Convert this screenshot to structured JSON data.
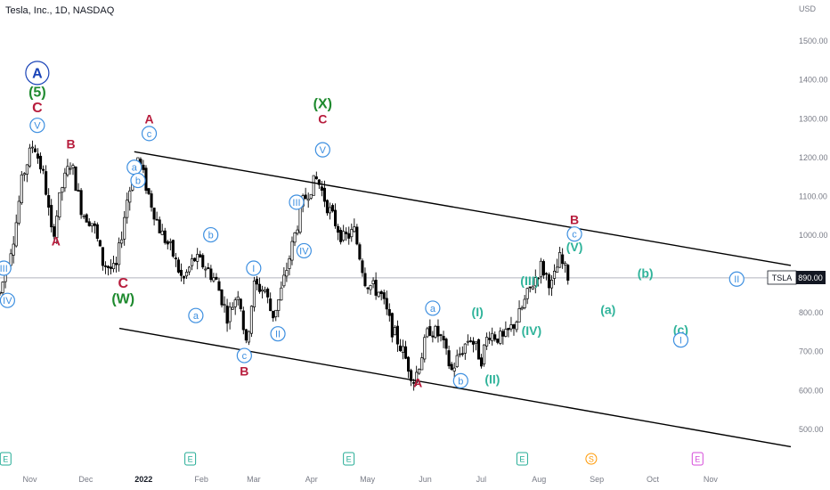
{
  "header": {
    "title": "Tesla, Inc., 1D, NASDAQ",
    "currency": "USD"
  },
  "price_tag": {
    "symbol": "TSLA",
    "price": "890.00"
  },
  "colors": {
    "up": "#ffffff",
    "down": "#000000",
    "channel": "#000000",
    "red": "#b71c3c",
    "green": "#1e8a2e",
    "blue": "#3d8fe0",
    "navy": "#1943b7",
    "teal": "#2fb39a",
    "axis_text": "#787b86",
    "price_line": "#b2b5be",
    "earnings": "#22ab94",
    "dividend": "#ff9800",
    "event": "#d449d9"
  },
  "chart_data": {
    "type": "candlestick",
    "ylim": [
      440,
      1560
    ],
    "y_ticks": [
      500,
      600,
      700,
      800,
      900,
      1000,
      1100,
      1200,
      1300,
      1400,
      1500
    ],
    "y_tick_labels": [
      "500.00",
      "600.00",
      "700.00",
      "800.00",
      "900.00",
      "1000.00",
      "1100.00",
      "1200.00",
      "1300.00",
      "1400.00",
      "1500.00"
    ],
    "x_ticks": [
      {
        "day": 16,
        "label": "Nov"
      },
      {
        "day": 46,
        "label": "Dec"
      },
      {
        "day": 77,
        "label": "2022"
      },
      {
        "day": 108,
        "label": "Feb"
      },
      {
        "day": 136,
        "label": "Mar"
      },
      {
        "day": 167,
        "label": "Apr"
      },
      {
        "day": 197,
        "label": "May"
      },
      {
        "day": 228,
        "label": "Jun"
      },
      {
        "day": 258,
        "label": "Jul"
      },
      {
        "day": 289,
        "label": "Aug"
      },
      {
        "day": 320,
        "label": "Sep"
      },
      {
        "day": 350,
        "label": "Oct"
      },
      {
        "day": 381,
        "label": "Nov"
      }
    ],
    "x_range": [
      0,
      424
    ],
    "last_price": 890,
    "price_path": [
      [
        0,
        850
      ],
      [
        8,
        1010
      ],
      [
        12,
        1150
      ],
      [
        18,
        1240
      ],
      [
        24,
        1140
      ],
      [
        28,
        990
      ],
      [
        33,
        1120
      ],
      [
        38,
        1190
      ],
      [
        44,
        1060
      ],
      [
        50,
        1030
      ],
      [
        55,
        930
      ],
      [
        62,
        905
      ],
      [
        68,
        1090
      ],
      [
        74,
        1200
      ],
      [
        80,
        1100
      ],
      [
        86,
        1010
      ],
      [
        92,
        960
      ],
      [
        98,
        880
      ],
      [
        104,
        940
      ],
      [
        110,
        920
      ],
      [
        116,
        880
      ],
      [
        122,
        790
      ],
      [
        128,
        860
      ],
      [
        132,
        710
      ],
      [
        136,
        870
      ],
      [
        142,
        860
      ],
      [
        146,
        790
      ],
      [
        150,
        840
      ],
      [
        156,
        960
      ],
      [
        162,
        1080
      ],
      [
        166,
        1120
      ],
      [
        170,
        1145
      ],
      [
        176,
        1070
      ],
      [
        184,
        990
      ],
      [
        190,
        1010
      ],
      [
        196,
        880
      ],
      [
        204,
        850
      ],
      [
        210,
        760
      ],
      [
        216,
        700
      ],
      [
        222,
        625
      ],
      [
        226,
        690
      ],
      [
        230,
        760
      ],
      [
        236,
        740
      ],
      [
        242,
        650
      ],
      [
        246,
        690
      ],
      [
        252,
        740
      ],
      [
        258,
        680
      ],
      [
        262,
        750
      ],
      [
        270,
        730
      ],
      [
        278,
        790
      ],
      [
        284,
        860
      ],
      [
        290,
        920
      ],
      [
        296,
        870
      ],
      [
        300,
        940
      ],
      [
        305,
        890
      ]
    ],
    "channel_lines": [
      {
        "name": "upper",
        "points": [
          [
            72,
            1215
          ],
          [
            424,
            922
          ]
        ]
      },
      {
        "name": "lower",
        "points": [
          [
            64,
            760
          ],
          [
            424,
            455
          ]
        ]
      }
    ],
    "wave_labels": [
      {
        "text": "A",
        "day": 20,
        "price": 1418,
        "style": "circled-big",
        "color": "navy"
      },
      {
        "text": "(5)",
        "day": 20,
        "price": 1370,
        "style": "plain-big",
        "color": "green"
      },
      {
        "text": "C",
        "day": 20,
        "price": 1330,
        "style": "plain-big",
        "color": "red"
      },
      {
        "text": "V",
        "day": 20,
        "price": 1283,
        "style": "circled",
        "color": "blue"
      },
      {
        "text": "B",
        "day": 38,
        "price": 1235,
        "style": "plain",
        "color": "red"
      },
      {
        "text": "A",
        "day": 30,
        "price": 985,
        "style": "plain",
        "color": "red"
      },
      {
        "text": "III",
        "day": 2,
        "price": 915,
        "style": "circled",
        "color": "blue"
      },
      {
        "text": "IV",
        "day": 4,
        "price": 832,
        "style": "circled",
        "color": "blue"
      },
      {
        "text": "C",
        "day": 66,
        "price": 878,
        "style": "plain-big",
        "color": "red"
      },
      {
        "text": "(W)",
        "day": 66,
        "price": 838,
        "style": "plain-big",
        "color": "green"
      },
      {
        "text": "A",
        "day": 80,
        "price": 1300,
        "style": "plain",
        "color": "red"
      },
      {
        "text": "c",
        "day": 80,
        "price": 1262,
        "style": "circled",
        "color": "blue"
      },
      {
        "text": "a",
        "day": 72,
        "price": 1175,
        "style": "circled",
        "color": "blue"
      },
      {
        "text": "b",
        "day": 74,
        "price": 1141,
        "style": "circled",
        "color": "blue"
      },
      {
        "text": "b",
        "day": 113,
        "price": 1001,
        "style": "circled",
        "color": "blue"
      },
      {
        "text": "a",
        "day": 105,
        "price": 793,
        "style": "circled",
        "color": "blue"
      },
      {
        "text": "I",
        "day": 136,
        "price": 915,
        "style": "circled",
        "color": "blue"
      },
      {
        "text": "II",
        "day": 149,
        "price": 746,
        "style": "circled",
        "color": "blue"
      },
      {
        "text": "c",
        "day": 131,
        "price": 690,
        "style": "circled",
        "color": "blue"
      },
      {
        "text": "B",
        "day": 131,
        "price": 650,
        "style": "plain",
        "color": "red"
      },
      {
        "text": "(X)",
        "day": 173,
        "price": 1340,
        "style": "plain-big",
        "color": "green"
      },
      {
        "text": "C",
        "day": 173,
        "price": 1300,
        "style": "plain",
        "color": "red"
      },
      {
        "text": "V",
        "day": 173,
        "price": 1220,
        "style": "circled",
        "color": "blue"
      },
      {
        "text": "III",
        "day": 159,
        "price": 1085,
        "style": "circled",
        "color": "blue"
      },
      {
        "text": "IV",
        "day": 163,
        "price": 960,
        "style": "circled",
        "color": "blue"
      },
      {
        "text": "a",
        "day": 232,
        "price": 812,
        "style": "circled",
        "color": "blue"
      },
      {
        "text": "b",
        "day": 247,
        "price": 625,
        "style": "circled",
        "color": "blue"
      },
      {
        "text": "A",
        "day": 224,
        "price": 620,
        "style": "plain",
        "color": "red"
      },
      {
        "text": "(I)",
        "day": 256,
        "price": 803,
        "style": "plain",
        "color": "teal"
      },
      {
        "text": "(II)",
        "day": 264,
        "price": 630,
        "style": "plain",
        "color": "teal"
      },
      {
        "text": "(III)",
        "day": 284,
        "price": 883,
        "style": "plain",
        "color": "teal"
      },
      {
        "text": "(IV)",
        "day": 285,
        "price": 755,
        "style": "plain",
        "color": "teal"
      },
      {
        "text": "B",
        "day": 308,
        "price": 1040,
        "style": "plain",
        "color": "red"
      },
      {
        "text": "c",
        "day": 308,
        "price": 1003,
        "style": "circled",
        "color": "blue"
      },
      {
        "text": "(V)",
        "day": 308,
        "price": 970,
        "style": "plain",
        "color": "teal"
      },
      {
        "text": "(b)",
        "day": 346,
        "price": 902,
        "style": "plain",
        "color": "teal"
      },
      {
        "text": "(a)",
        "day": 326,
        "price": 809,
        "style": "plain",
        "color": "teal"
      },
      {
        "text": "(c)",
        "day": 365,
        "price": 757,
        "style": "plain",
        "color": "teal"
      },
      {
        "text": "I",
        "day": 365,
        "price": 730,
        "style": "circled",
        "color": "blue"
      },
      {
        "text": "II",
        "day": 395,
        "price": 887,
        "style": "circled",
        "color": "blue"
      }
    ],
    "events": [
      {
        "day": 3,
        "letter": "E",
        "kind": "earnings"
      },
      {
        "day": 102,
        "letter": "E",
        "kind": "earnings"
      },
      {
        "day": 187,
        "letter": "E",
        "kind": "earnings"
      },
      {
        "day": 280,
        "letter": "E",
        "kind": "earnings"
      },
      {
        "day": 317,
        "letter": "S",
        "kind": "dividend"
      },
      {
        "day": 374,
        "letter": "E",
        "kind": "event"
      }
    ]
  }
}
